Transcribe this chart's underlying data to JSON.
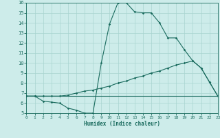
{
  "background_color": "#cdecea",
  "grid_color": "#a8d5d0",
  "line_color": "#1a6b5e",
  "xlabel": "Humidex (Indice chaleur)",
  "xlim": [
    0,
    23
  ],
  "ylim": [
    5,
    16
  ],
  "xticks": [
    0,
    1,
    2,
    3,
    4,
    5,
    6,
    7,
    8,
    9,
    10,
    11,
    12,
    13,
    14,
    15,
    16,
    17,
    18,
    19,
    20,
    21,
    22,
    23
  ],
  "yticks": [
    5,
    6,
    7,
    8,
    9,
    10,
    11,
    12,
    13,
    14,
    15,
    16
  ],
  "line1_x": [
    0,
    1,
    2,
    3,
    4,
    5,
    6,
    7,
    8,
    9,
    10,
    11,
    12,
    13,
    14,
    15,
    16,
    17,
    18,
    19,
    20,
    21,
    22,
    23
  ],
  "line1_y": [
    6.7,
    6.7,
    6.2,
    6.1,
    6.0,
    5.5,
    5.3,
    5.0,
    5.0,
    10.0,
    13.9,
    16.0,
    16.0,
    15.1,
    15.0,
    15.0,
    14.0,
    12.5,
    12.5,
    11.3,
    10.2,
    9.5,
    8.1,
    6.7
  ],
  "line2_x": [
    0,
    1,
    2,
    3,
    4,
    5,
    6,
    7,
    8,
    9,
    10,
    11,
    12,
    13,
    14,
    15,
    16,
    17,
    18,
    19,
    20,
    21,
    22,
    23
  ],
  "line2_y": [
    6.7,
    6.7,
    6.7,
    6.7,
    6.7,
    6.8,
    7.0,
    7.2,
    7.3,
    7.5,
    7.7,
    8.0,
    8.2,
    8.5,
    8.7,
    9.0,
    9.2,
    9.5,
    9.8,
    10.0,
    10.2,
    9.5,
    8.1,
    6.7
  ],
  "line3_x": [
    0,
    1,
    2,
    3,
    4,
    5,
    6,
    7,
    8,
    9,
    10,
    11,
    12,
    13,
    14,
    15,
    16,
    17,
    18,
    19,
    20,
    21,
    22,
    23
  ],
  "line3_y": [
    6.7,
    6.7,
    6.7,
    6.7,
    6.7,
    6.7,
    6.7,
    6.7,
    6.7,
    6.7,
    6.7,
    6.7,
    6.7,
    6.7,
    6.7,
    6.7,
    6.7,
    6.7,
    6.7,
    6.7,
    6.7,
    6.7,
    6.7,
    6.7
  ]
}
